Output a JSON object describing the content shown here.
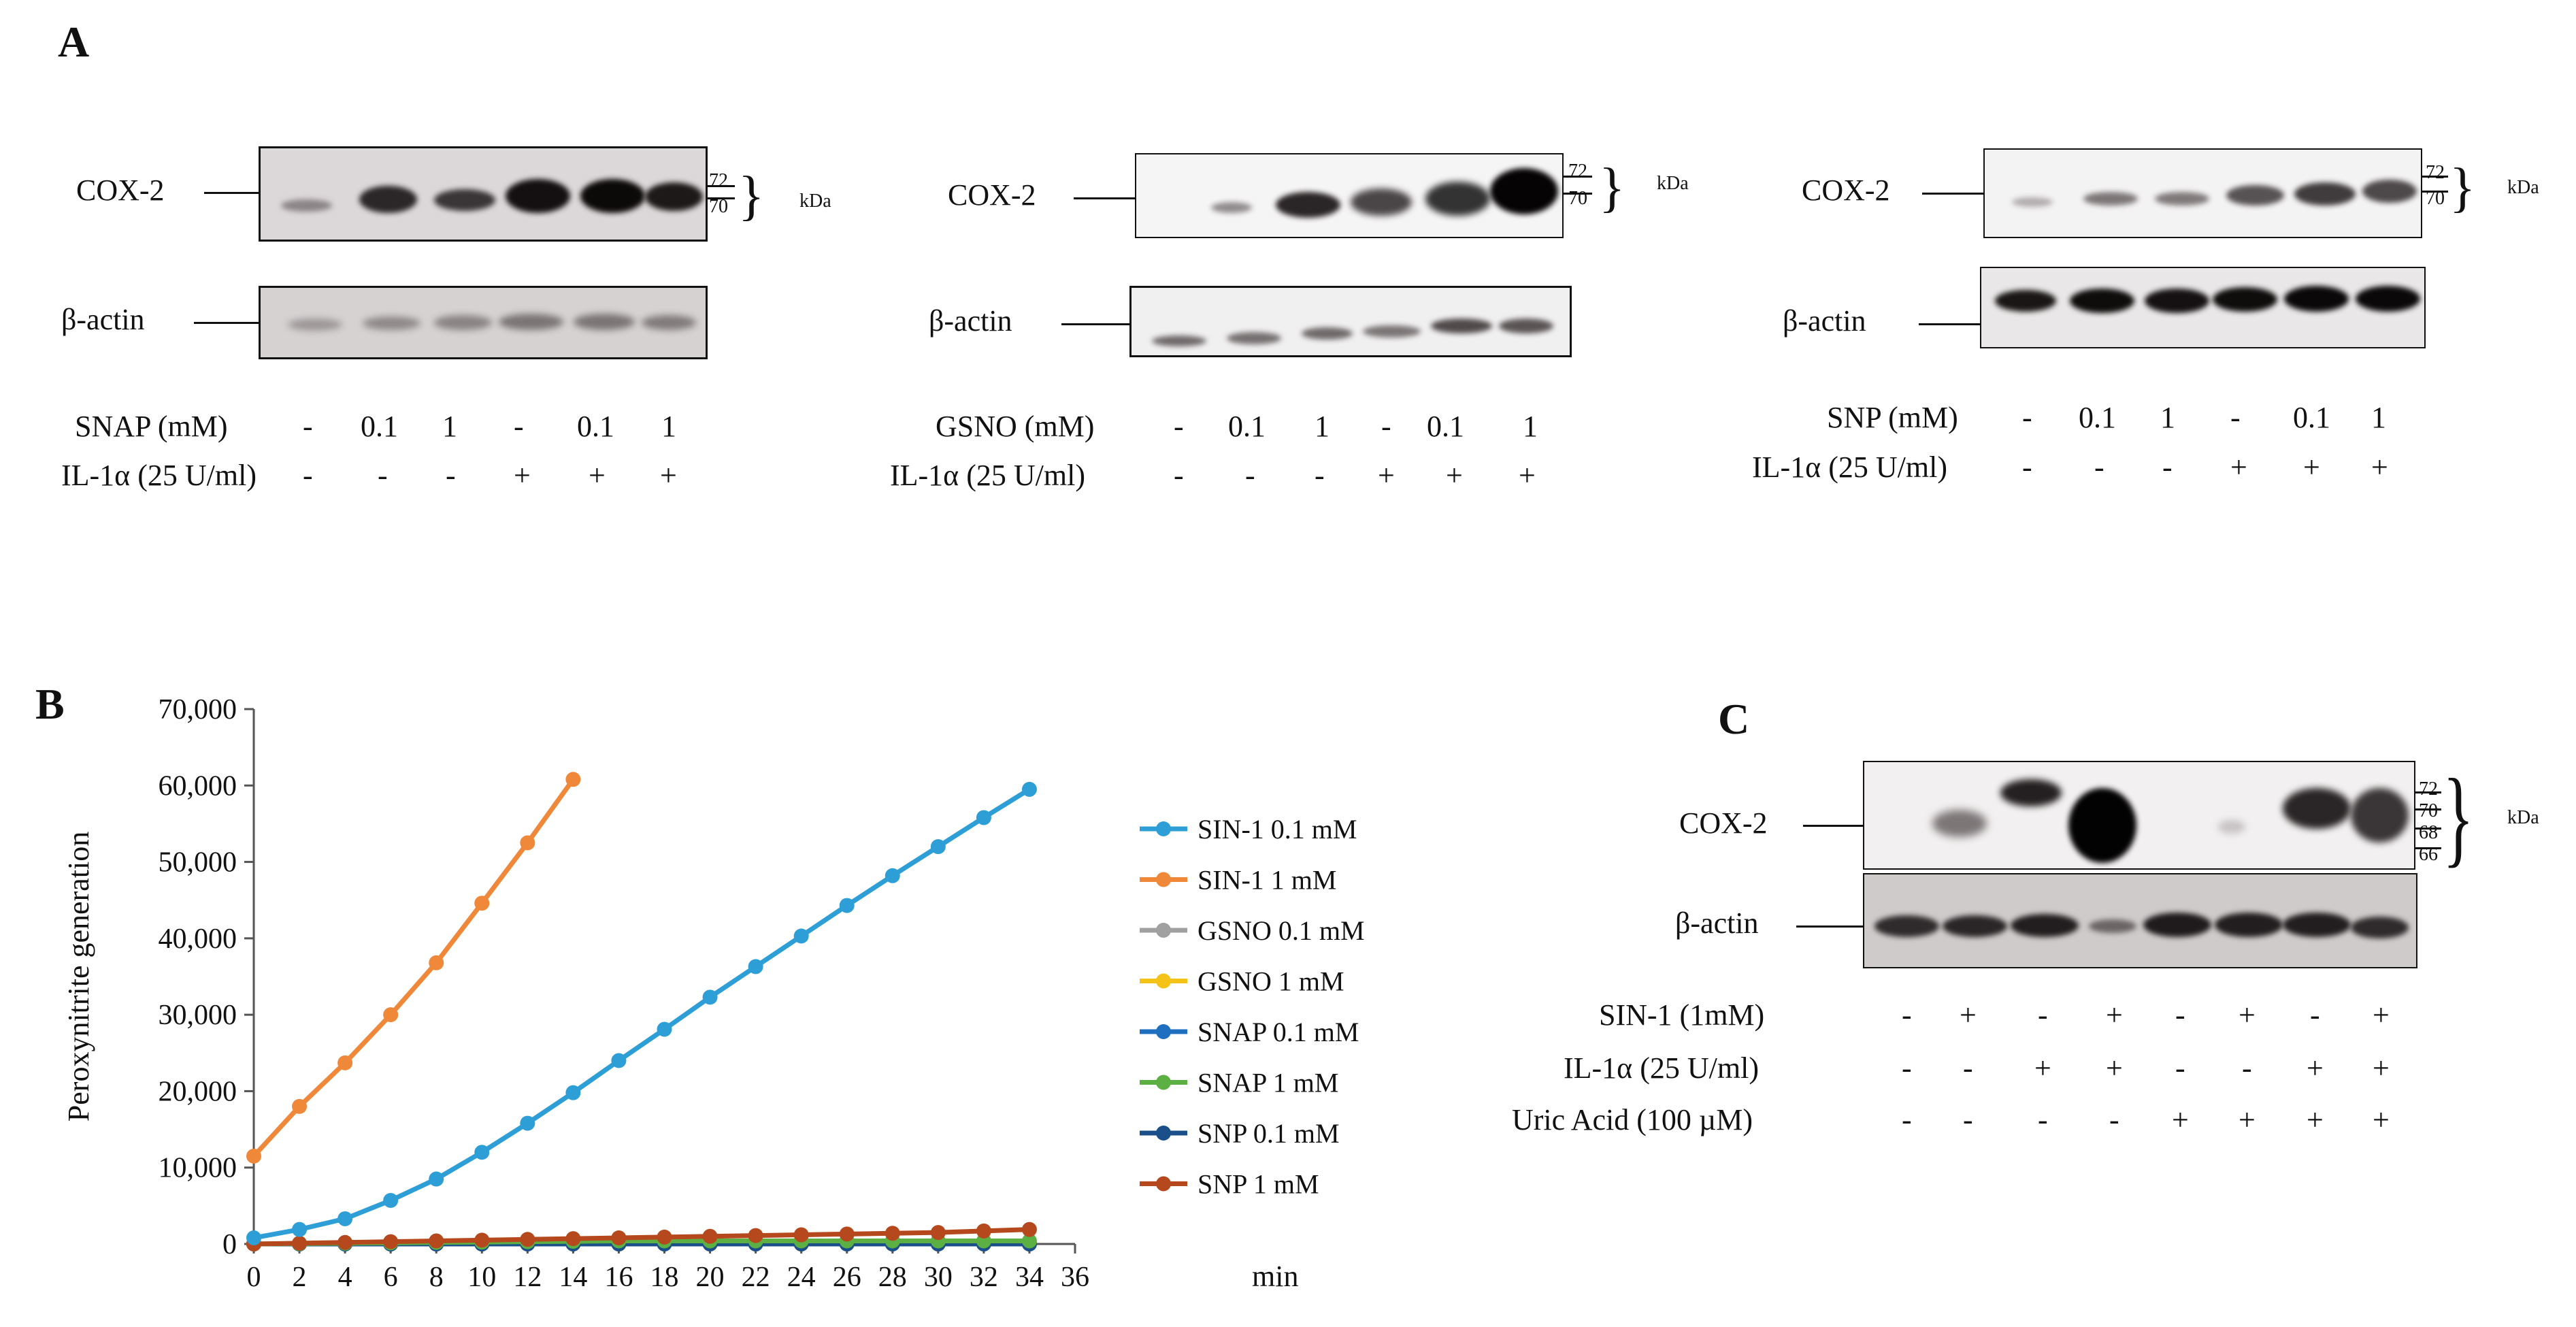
{
  "panelA": {
    "letter": "A",
    "blot1": {
      "protein": "COX-2",
      "control": "β-actin",
      "treatment": "SNAP (mM)",
      "il": "IL-1α (25 U/ml)",
      "doses": [
        "-",
        "0.1",
        "1",
        "-",
        "0.1",
        "1"
      ],
      "il_signs": [
        "-",
        "-",
        "-",
        "+",
        "+",
        "+"
      ],
      "mw": [
        "72",
        "70"
      ],
      "kda": "kDa"
    },
    "blot2": {
      "protein": "COX-2",
      "control": "β-actin",
      "treatment": "GSNO (mM)",
      "il": "IL-1α (25 U/ml)",
      "doses": [
        "-",
        "0.1",
        "1",
        "-",
        "0.1",
        "1"
      ],
      "il_signs": [
        "-",
        "-",
        "-",
        "+",
        "+",
        "+"
      ],
      "mw": [
        "72",
        "70"
      ],
      "kda": "kDa"
    },
    "blot3": {
      "protein": "COX-2",
      "control": "β-actin",
      "treatment": "SNP (mM)",
      "il": "IL-1α (25 U/ml)",
      "doses": [
        "-",
        "0.1",
        "1",
        "-",
        "0.1",
        "1"
      ],
      "il_signs": [
        "-",
        "-",
        "-",
        "+",
        "+",
        "+"
      ],
      "mw": [
        "72",
        "70"
      ],
      "kda": "kDa"
    }
  },
  "panelB": {
    "letter": "B"
  },
  "panelC": {
    "letter": "C",
    "protein": "COX-2",
    "control": "β-actin",
    "mw": [
      "72",
      "70",
      "68",
      "66"
    ],
    "kda": "kDa",
    "rows": [
      {
        "label": "SIN-1 (1mM)",
        "signs": [
          "-",
          "+",
          "-",
          "+",
          "-",
          "+",
          "-",
          "+"
        ]
      },
      {
        "label": "IL-1α (25 U/ml)",
        "signs": [
          "-",
          "-",
          "+",
          "+",
          "-",
          "-",
          "+",
          "+"
        ]
      },
      {
        "label": "Uric Acid (100 µM)",
        "signs": [
          "-",
          "-",
          "-",
          "-",
          "+",
          "+",
          "+",
          "+"
        ]
      }
    ]
  },
  "chart_data": {
    "type": "line",
    "ylabel": "Peroxynitrite  generation",
    "xlabel": "min",
    "xlim": [
      0,
      36
    ],
    "ylim": [
      0,
      70000
    ],
    "xticks": [
      0,
      2,
      4,
      6,
      8,
      10,
      12,
      14,
      16,
      18,
      20,
      22,
      24,
      26,
      28,
      30,
      32,
      34,
      36
    ],
    "yticks": [
      0,
      10000,
      20000,
      30000,
      40000,
      50000,
      60000,
      70000
    ],
    "ytick_labels": [
      "0",
      "10,000",
      "20,000",
      "30,000",
      "40,000",
      "50,000",
      "60,000",
      "70,000"
    ],
    "legend_position": "right",
    "series": [
      {
        "name": "SIN-1 0.1 mM",
        "color": "#2e9fd6",
        "x": [
          0,
          2,
          4,
          6,
          8,
          10,
          12,
          14,
          16,
          18,
          20,
          22,
          24,
          26,
          28,
          30,
          32,
          34
        ],
        "y": [
          800,
          1900,
          3300,
          5700,
          8500,
          12000,
          15800,
          19800,
          24000,
          28100,
          32300,
          36300,
          40300,
          44300,
          48200,
          52000,
          55800,
          59500
        ]
      },
      {
        "name": "SIN-1 1 mM",
        "color": "#f0883a",
        "x": [
          0,
          2,
          4,
          6,
          8,
          10,
          12,
          14
        ],
        "y": [
          11500,
          18000,
          23700,
          30000,
          36800,
          44600,
          52500,
          60800
        ]
      },
      {
        "name": "GSNO 0.1 mM",
        "color": "#a0a0a0",
        "x": [
          0,
          2,
          4,
          6,
          8,
          10,
          12,
          14,
          16,
          18,
          20,
          22,
          24,
          26,
          28,
          30,
          32,
          34
        ],
        "y": [
          0,
          0,
          0,
          0,
          0,
          0,
          0,
          0,
          0,
          0,
          0,
          0,
          0,
          0,
          0,
          0,
          0,
          0
        ]
      },
      {
        "name": "GSNO 1 mM",
        "color": "#f5c218",
        "x": [
          0,
          2,
          4,
          6,
          8,
          10,
          12,
          14,
          16,
          18,
          20,
          22,
          24,
          26,
          28,
          30,
          32,
          34
        ],
        "y": [
          0,
          0,
          0,
          0,
          0,
          0,
          0,
          0,
          0,
          0,
          0,
          0,
          0,
          0,
          0,
          0,
          0,
          0
        ]
      },
      {
        "name": "SNAP 0.1 mM",
        "color": "#1f6fc0",
        "x": [
          0,
          2,
          4,
          6,
          8,
          10,
          12,
          14,
          16,
          18,
          20,
          22,
          24,
          26,
          28,
          30,
          32,
          34
        ],
        "y": [
          0,
          0,
          0,
          0,
          0,
          0,
          0,
          0,
          0,
          0,
          0,
          0,
          0,
          0,
          0,
          0,
          0,
          0
        ]
      },
      {
        "name": "SNAP 1 mM",
        "color": "#5cb043",
        "x": [
          0,
          2,
          4,
          6,
          8,
          10,
          12,
          14,
          16,
          18,
          20,
          22,
          24,
          26,
          28,
          30,
          32,
          34
        ],
        "y": [
          0,
          50,
          100,
          150,
          200,
          250,
          300,
          350,
          400,
          400,
          400,
          400,
          400,
          400,
          400,
          400,
          400,
          400
        ]
      },
      {
        "name": "SNP 0.1 mM",
        "color": "#1a4f8a",
        "x": [
          0,
          2,
          4,
          6,
          8,
          10,
          12,
          14,
          16,
          18,
          20,
          22,
          24,
          26,
          28,
          30,
          32,
          34
        ],
        "y": [
          0,
          0,
          0,
          0,
          0,
          0,
          0,
          0,
          0,
          0,
          0,
          0,
          0,
          0,
          0,
          0,
          0,
          0
        ]
      },
      {
        "name": "SNP 1 mM",
        "color": "#b5481c",
        "x": [
          0,
          2,
          4,
          6,
          8,
          10,
          12,
          14,
          16,
          18,
          20,
          22,
          24,
          26,
          28,
          30,
          32,
          34
        ],
        "y": [
          0,
          100,
          200,
          300,
          400,
          500,
          600,
          700,
          800,
          900,
          1000,
          1100,
          1200,
          1300,
          1400,
          1500,
          1700,
          1900
        ]
      }
    ]
  }
}
